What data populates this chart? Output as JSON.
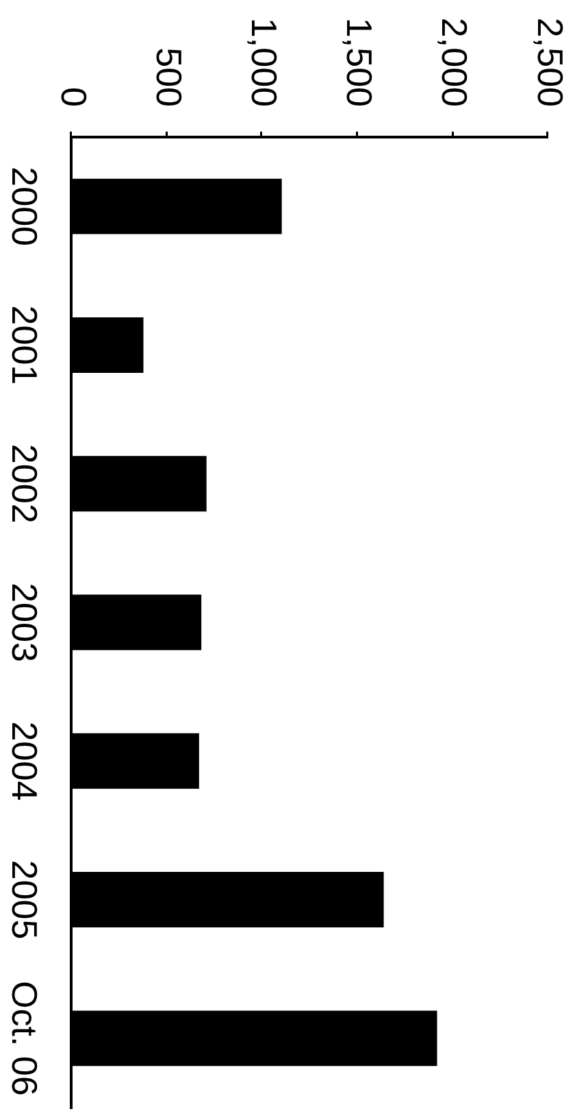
{
  "chart_data": {
    "type": "bar",
    "orientation": "horizontal",
    "categories": [
      "2000",
      "2001",
      "2002",
      "2003",
      "2004",
      "2005",
      "Oct. 06"
    ],
    "values": [
      1105,
      379,
      710,
      683,
      671,
      1640,
      1920
    ],
    "color": "#000000",
    "xlim": [
      0,
      2500
    ],
    "xticks": [
      0,
      500,
      {
        "value": 1000,
        "label": "1,000"
      },
      {
        "value": 1500,
        "label": "1,500"
      },
      {
        "value": 2000,
        "label": "2,000"
      },
      {
        "value": 2500,
        "label": "2,500"
      }
    ],
    "grid": false,
    "legend": false
  }
}
